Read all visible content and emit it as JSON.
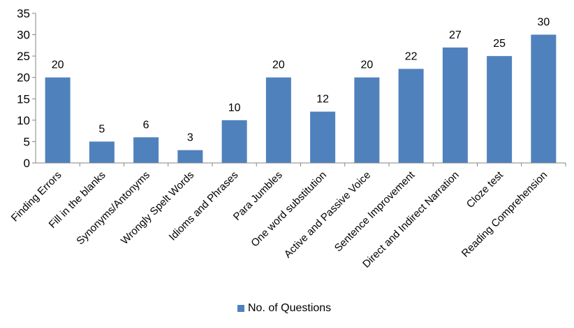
{
  "chart_data": {
    "type": "bar",
    "categories": [
      "Finding Errors",
      "Fill in the blanks",
      "Synonyms/Antonyms",
      "Wrongly Spelt Words",
      "Idioms and Phrases",
      "Para Jumbles",
      "One word substitution",
      "Active and Passive Voice",
      "Sentence Improvement",
      "Direct and Indirect Narration",
      "Cloze test",
      "Reading Comprehension"
    ],
    "series": [
      {
        "name": "No. of Questions",
        "values": [
          20,
          5,
          6,
          3,
          10,
          20,
          12,
          20,
          22,
          27,
          25,
          30
        ]
      }
    ],
    "ylim": [
      0,
      35
    ],
    "yticks": [
      "0",
      "5",
      "10",
      "15",
      "20",
      "25",
      "30",
      "35"
    ],
    "grid": false,
    "legend_position": "bottom",
    "color": "#4f81bd"
  }
}
